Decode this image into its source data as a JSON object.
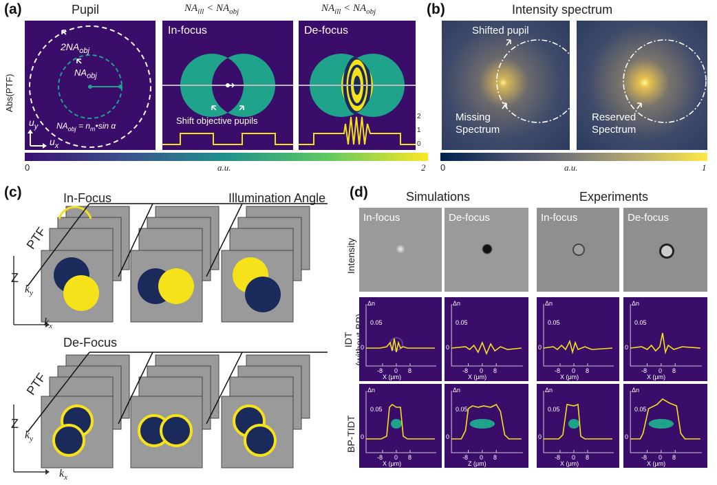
{
  "panel_a": {
    "label": "(a)",
    "pupil_title": "Pupil",
    "cond1_title": "NA_ill < NA_obj",
    "cond2_title": "NA_ill < NA_obj",
    "y_axis": "Abs(PTF)",
    "na2_label": "2NA",
    "na2_sub": "obj",
    "na_label": "NA",
    "na_sub": "obj",
    "formula_lhs": "NA",
    "formula_sub": "obj",
    "formula_rhs": "= n",
    "formula_m": "m",
    "formula_tail": "•sin α",
    "ux": "u",
    "ux_sub": "x",
    "uy": "u",
    "uy_sub": "y",
    "infocus": "In-focus",
    "defocus": "De-focus",
    "shift_text": "Shift objective pupils",
    "ticks": [
      "2",
      "1",
      "0"
    ],
    "cbar_min": "0",
    "cbar_mid": "a.u.",
    "cbar_max": "2"
  },
  "panel_b": {
    "label": "(b)",
    "title": "Intensity spectrum",
    "shifted": "Shifted pupil",
    "missing1": "Missing",
    "missing2": "Spectrum",
    "reserved1": "Reserved",
    "reserved2": "Spectrum",
    "cbar_min": "0",
    "cbar_mid": "a.u.",
    "cbar_max": "1"
  },
  "panel_c": {
    "label": "(c)",
    "infocus": "In-Focus",
    "illum": "Illumination Angle",
    "defocus": "De-Focus",
    "ptf": "PTF",
    "z": "Z",
    "ky": "k",
    "ky_sub": "y",
    "kx": "k",
    "kx_sub": "x"
  },
  "panel_d": {
    "label": "(d)",
    "sim": "Simulations",
    "exp": "Experiments",
    "row1": "Intensity",
    "row2a": "IDT",
    "row2b": "(without BP)",
    "row3": "BP-TIDT",
    "infocus": "In-focus",
    "defocus": "De-focus",
    "dn": "Δn",
    "y005": "0.05",
    "y0": "0",
    "xticks": [
      "-8",
      "0",
      "8"
    ],
    "xlabel": "X (μm)",
    "zlabel": "Z (μm)"
  },
  "colors": {
    "purple": "#3a0d6a",
    "teal": "#1fa38a",
    "yellow": "#f5e21a",
    "navy": "#1a2a5a",
    "gray": "#9a9a9a"
  }
}
